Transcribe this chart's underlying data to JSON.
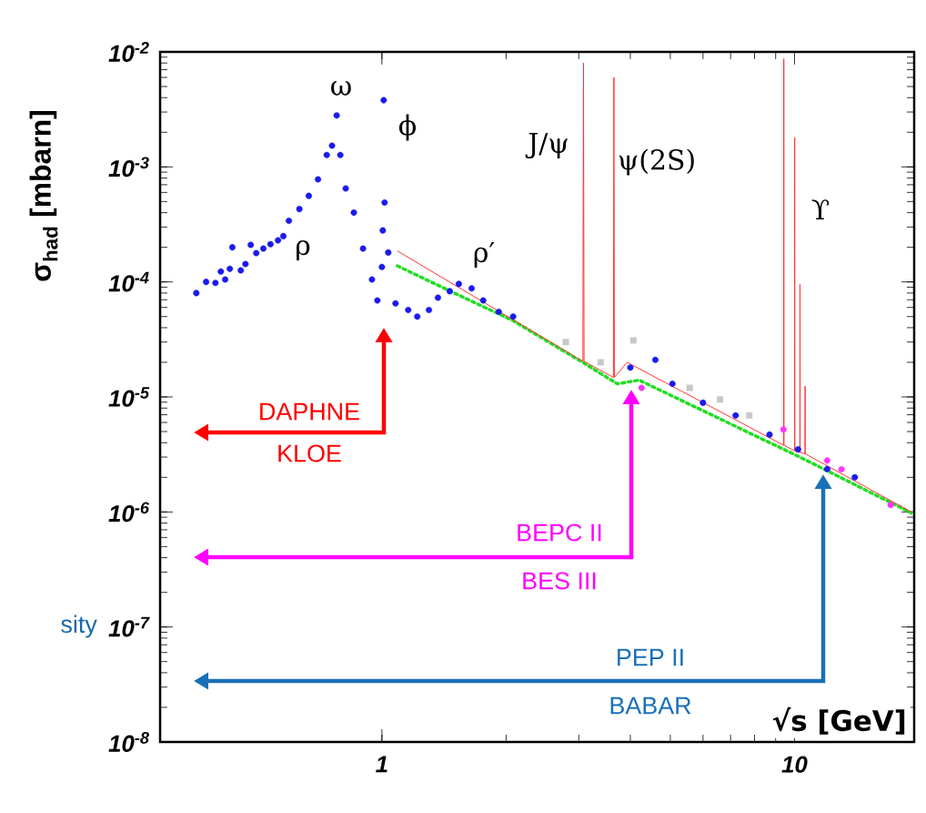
{
  "chart_data": {
    "type": "scatter",
    "log": "xy",
    "ylabel": "σ$_{had}$ [mbarn]",
    "xlabel": "√s [GeV]",
    "xlim": [
      0.29,
      19.5
    ],
    "ylim": [
      1e-08,
      0.01
    ],
    "xticks": [
      1,
      10
    ],
    "yticks": [
      {
        "value": 1e-08,
        "label": "10$^{-8}$"
      },
      {
        "value": 1e-07,
        "label": "10$^{-7}$"
      },
      {
        "value": 1e-06,
        "label": "10$^{-6}$"
      },
      {
        "value": 1e-05,
        "label": "10$^{-5}$"
      },
      {
        "value": 0.0001,
        "label": "10$^{-4}$"
      },
      {
        "value": 0.001,
        "label": "10$^{-3}$"
      },
      {
        "value": 0.01,
        "label": "10$^{-2}$"
      }
    ],
    "series": [
      {
        "marker": "square",
        "color": "#c8c8c8",
        "x": [
          2.79,
          3.39,
          4.07,
          5.57,
          6.6,
          7.77
        ],
        "values": [
          3e-05,
          2e-05,
          3.1e-05,
          1.2e-05,
          9.5e-06,
          6.9e-06
        ]
      },
      {
        "type": "line",
        "line_style": "dotted",
        "color": "#22dd22",
        "x": [
          1.09,
          1.51,
          2.08,
          3.1,
          3.72,
          4.2,
          10.4,
          19.2
        ],
        "values": [
          0.000138,
          7.9e-05,
          4.6e-05,
          1.95e-05,
          1.3e-05,
          1.4e-05,
          2.95e-06,
          9.8e-07
        ]
      },
      {
        "marker": "circle",
        "color": "#1a1aee",
        "x": [
          0.355,
          0.375,
          0.395,
          0.407,
          0.417,
          0.428,
          0.434,
          0.455,
          0.467,
          0.481,
          0.496,
          0.516,
          0.537,
          0.56,
          0.577,
          0.595,
          0.631,
          0.665,
          0.7,
          0.735,
          0.757,
          0.777,
          0.793,
          0.817,
          0.855,
          0.9,
          0.946,
          0.975,
          1.0,
          1.005,
          1.01,
          1.015,
          1.036,
          1.079,
          1.158,
          1.218,
          1.3,
          1.367,
          1.46,
          1.536,
          1.65,
          1.76,
          1.92,
          2.08,
          4.0,
          4.6,
          5.06,
          6.0,
          7.2,
          8.7,
          10.2,
          12.0,
          14.0
        ],
        "values": [
          8e-05,
          0.0001,
          9.8e-05,
          0.000123,
          0.000105,
          0.00013,
          0.0002,
          0.000126,
          0.000143,
          0.00021,
          0.000178,
          0.000195,
          0.000213,
          0.00023,
          0.00025,
          0.00034,
          0.00043,
          0.00056,
          0.00078,
          0.00127,
          0.00153,
          0.0028,
          0.00127,
          0.00065,
          0.0004,
          0.000195,
          0.000105,
          6.9e-05,
          0.000135,
          0.00028,
          0.0038,
          0.00049,
          0.00018,
          6.5e-05,
          5.7e-05,
          5e-05,
          5.7e-05,
          7.3e-05,
          8.3e-05,
          9.6e-05,
          8.8e-05,
          6.9e-05,
          5.5e-05,
          5e-05,
          1.8e-05,
          2.1e-05,
          1.3e-05,
          8.9e-06,
          6.9e-06,
          4.7e-06,
          3.5e-06,
          2.36e-06,
          2e-06
        ]
      },
      {
        "marker": "circle",
        "color": "#ff33ff",
        "x": [
          4.26,
          9.4,
          12.0,
          13.0,
          17.1
        ],
        "values": [
          1.2e-05,
          5.2e-06,
          2.8e-06,
          2.35e-06,
          1.15e-06
        ]
      },
      {
        "type": "line",
        "line_style": "solid",
        "color": "#ff3333",
        "x": [
          1.09,
          3.07,
          3.08,
          3.09,
          3.64,
          3.65,
          3.66,
          3.93,
          9.41,
          9.42,
          9.43,
          10.0,
          10.01,
          10.02,
          10.3,
          10.31,
          10.32,
          10.6,
          10.61,
          10.62,
          19.2
        ],
        "values": [
          0.000186,
          2.04e-05,
          0.008,
          2.04e-05,
          1.48e-05,
          0.006,
          1.48e-05,
          2e-05,
          3.8e-06,
          0.0087,
          3.8e-06,
          3.4e-06,
          0.0018,
          3.4e-06,
          3.3e-06,
          9.5e-05,
          3.3e-06,
          3.2e-06,
          1.24e-05,
          3.2e-06,
          1e-06
        ]
      }
    ],
    "annotations": [
      "ω",
      "ϕ",
      "ρ",
      "ρ′",
      "J/ψ",
      "ψ(2S)",
      "ϒ",
      "DAPHNE",
      "KLOE",
      "BEPC II",
      "BES III",
      "PEP II",
      "BABAR",
      "sity"
    ]
  }
}
